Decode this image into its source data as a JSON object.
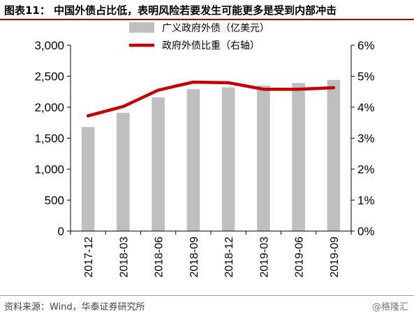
{
  "header": {
    "title": "图表11： 中国外债占比低，表明风险若要发生可能更多是受到内部冲击"
  },
  "footer": {
    "source": "资料来源：Wind，华泰证券研究所",
    "watermark": "@格隆汇"
  },
  "chart_data": {
    "type": "bar+line",
    "categories": [
      "2017-12",
      "2018-03",
      "2018-06",
      "2018-09",
      "2018-12",
      "2019-03",
      "2019-06",
      "2019-09"
    ],
    "series": [
      {
        "name": "广义政府外债（亿美元）",
        "type": "bar",
        "axis": "left",
        "color": "#bfbfbf",
        "values": [
          1680,
          1910,
          2160,
          2290,
          2320,
          2350,
          2390,
          2440
        ]
      },
      {
        "name": "政府外债比重（右轴）",
        "type": "line",
        "axis": "right",
        "color": "#c00000",
        "values": [
          3.72,
          4.02,
          4.55,
          4.81,
          4.79,
          4.58,
          4.58,
          4.63
        ]
      }
    ],
    "left_axis": {
      "min": 0,
      "max": 3000,
      "ticks": [
        "0",
        "500",
        "1,000",
        "1,500",
        "2,000",
        "2,500",
        "3,000"
      ]
    },
    "right_axis": {
      "min": 0,
      "max": 6,
      "ticks": [
        "0%",
        "1%",
        "2%",
        "3%",
        "4%",
        "5%",
        "6%"
      ]
    },
    "grid": false,
    "legend_position": "top-center"
  }
}
